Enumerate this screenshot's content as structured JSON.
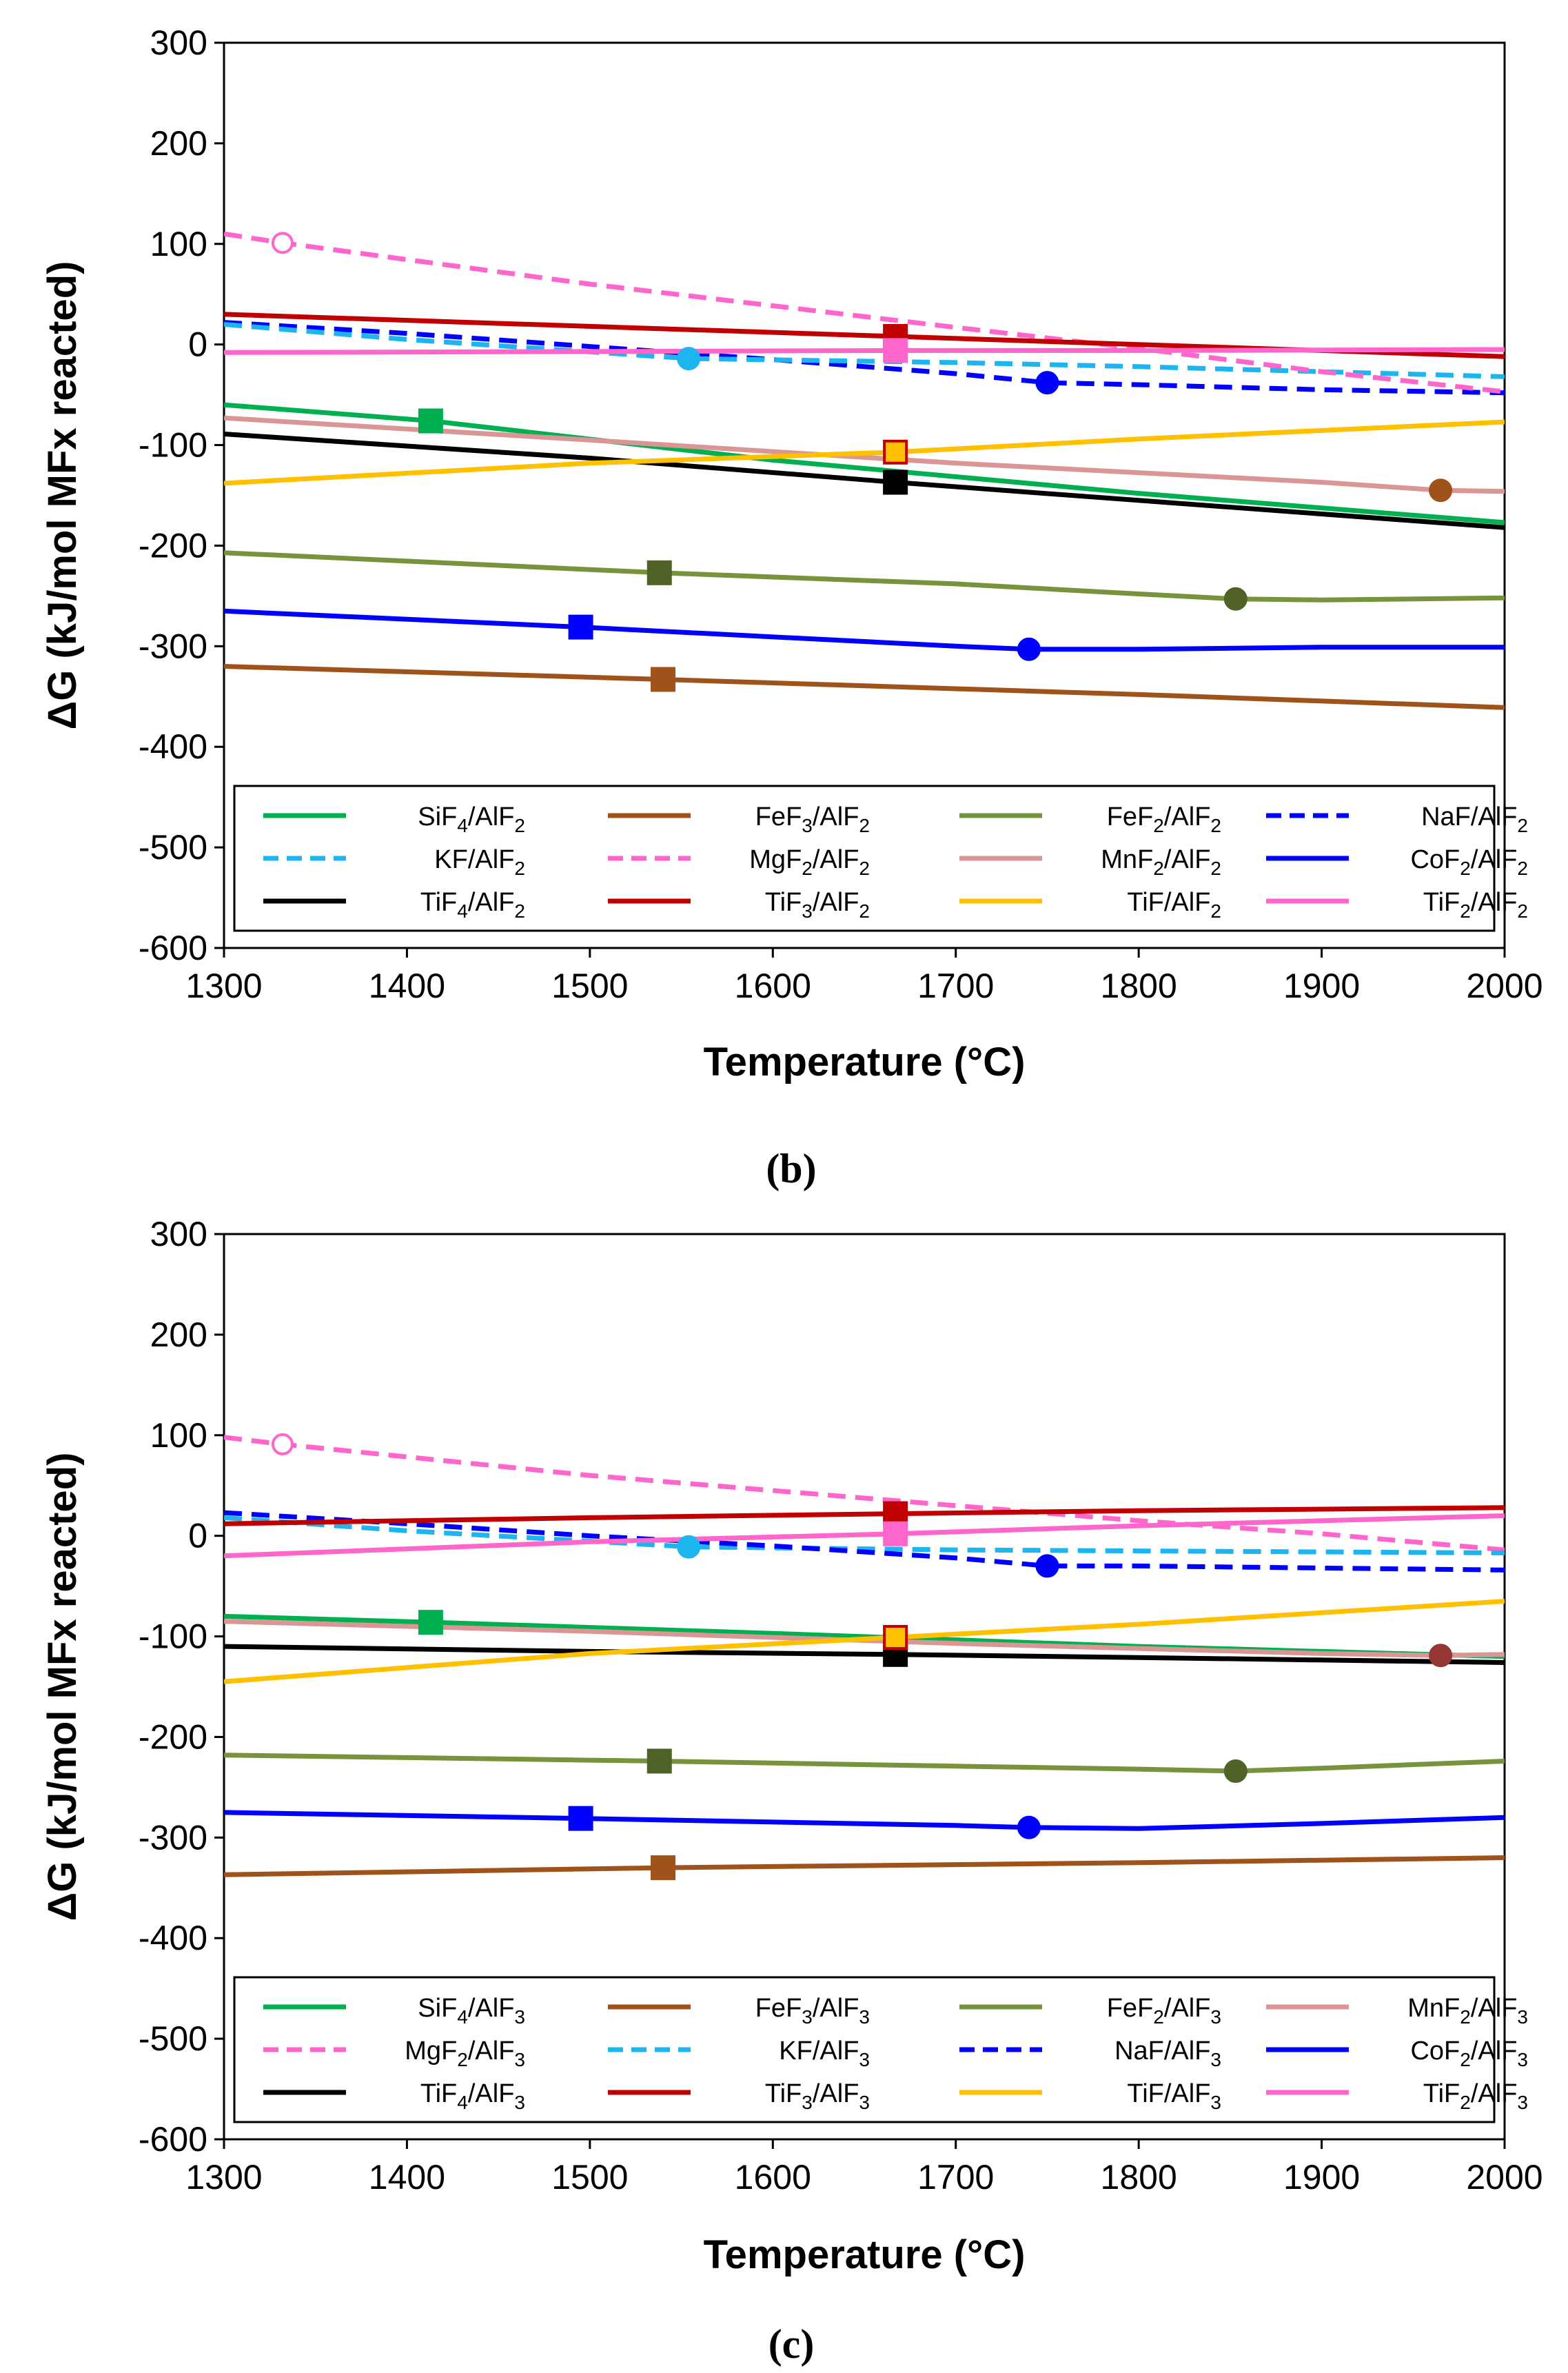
{
  "chart_data": [
    {
      "type": "line",
      "panel_label": "(b)",
      "xlabel": "Temperature (°C)",
      "ylabel": "ΔG (kJ/mol MFx reacted)",
      "xlim": [
        1300,
        2000
      ],
      "ylim": [
        -600,
        300
      ],
      "x_ticks": [
        1300,
        1400,
        1500,
        1600,
        1700,
        1800,
        1900,
        2000
      ],
      "y_ticks": [
        300,
        200,
        100,
        0,
        -100,
        -200,
        -300,
        -400,
        -500,
        -600
      ],
      "grid": false,
      "legend_position": "bottom",
      "series": [
        {
          "name": "SiF4/AlF2",
          "base": "SiF",
          "sub1": "4",
          "mid": "/AlF",
          "sub2": "2",
          "color": "#00b050",
          "dash": "solid",
          "x": [
            1300,
            1413,
            1600,
            1800,
            2000
          ],
          "y": [
            -60,
            -76,
            -115,
            -148,
            -177
          ],
          "marker": {
            "shape": "square",
            "x": 1413,
            "y": -76,
            "fill": "#00b050",
            "stroke": "#00b050"
          }
        },
        {
          "name": "FeF3/AlF2",
          "base": "FeF",
          "sub1": "3",
          "mid": "/AlF",
          "sub2": "2",
          "color": "#a0521b",
          "dash": "solid",
          "x": [
            1300,
            1540,
            1800,
            2000
          ],
          "y": [
            -320,
            -333,
            -348,
            -361
          ],
          "marker": {
            "shape": "square",
            "x": 1540,
            "y": -333,
            "fill": "#a0521b",
            "stroke": "#a0521b"
          }
        },
        {
          "name": "FeF2/AlF2",
          "base": "FeF",
          "sub1": "2",
          "mid": "/AlF",
          "sub2": "2",
          "color": "#77933c",
          "dash": "solid",
          "x": [
            1300,
            1538,
            1700,
            1800,
            1853,
            1900,
            2000
          ],
          "y": [
            -207,
            -227,
            -238,
            -248,
            -253,
            -254,
            -252
          ],
          "marker": {
            "shape": "square",
            "x": 1538,
            "y": -227,
            "fill": "#4f6228",
            "stroke": "#4f6228"
          },
          "marker2": {
            "shape": "circle",
            "x": 1853,
            "y": -253,
            "fill": "#4f6228",
            "stroke": "#4f6228"
          }
        },
        {
          "name": "NaF/AlF2",
          "base": "NaF",
          "sub1": "",
          "mid": "/AlF",
          "sub2": "2",
          "color": "#0000ff",
          "dash": "dashed",
          "x": [
            1300,
            1400,
            1500,
            1600,
            1700,
            1750,
            1800,
            1900,
            2000
          ],
          "y": [
            22,
            11,
            -2,
            -15,
            -29,
            -38,
            -40,
            -45,
            -48
          ],
          "marker": {
            "shape": "circle",
            "x": 1750,
            "y": -38,
            "fill": "#0000ff",
            "stroke": "#0000ff"
          }
        },
        {
          "name": "KF/AlF2",
          "base": "KF",
          "sub1": "",
          "mid": "/AlF",
          "sub2": "2",
          "color": "#1cb5f0",
          "dash": "dashed",
          "x": [
            1300,
            1400,
            1554,
            1700,
            1800,
            1900,
            2000
          ],
          "y": [
            20,
            5,
            -14,
            -18,
            -22,
            -27,
            -32
          ],
          "marker": {
            "shape": "circle",
            "x": 1554,
            "y": -14,
            "fill": "#1cb5f0",
            "stroke": "#1cb5f0"
          }
        },
        {
          "name": "MgF2/AlF2",
          "base": "MgF",
          "sub1": "2",
          "mid": "/AlF",
          "sub2": "2",
          "color": "#ff66cc",
          "dash": "dashed",
          "x": [
            1300,
            1332,
            1500,
            1700,
            1800,
            1900,
            2000
          ],
          "y": [
            110,
            101,
            60,
            17,
            -4,
            -27,
            -47
          ],
          "marker": {
            "shape": "open-circle",
            "x": 1332,
            "y": 101,
            "fill": "none",
            "stroke": "#ff66cc"
          }
        },
        {
          "name": "MnF2/AlF2",
          "base": "MnF",
          "sub1": "2",
          "mid": "/AlF",
          "sub2": "2",
          "color": "#d99694",
          "dash": "solid",
          "x": [
            1300,
            1500,
            1700,
            1900,
            1965,
            2000
          ],
          "y": [
            -73,
            -95,
            -118,
            -137,
            -145,
            -146
          ],
          "marker": {
            "shape": "circle",
            "x": 1965,
            "y": -145,
            "fill": "#a0521b",
            "stroke": "#a0521b"
          }
        },
        {
          "name": "CoF2/AlF2",
          "base": "CoF",
          "sub1": "2",
          "mid": "/AlF",
          "sub2": "2",
          "color": "#0000ff",
          "dash": "solid",
          "x": [
            1300,
            1495,
            1700,
            1740,
            1800,
            1900,
            2000
          ],
          "y": [
            -265,
            -281,
            -300,
            -303,
            -303,
            -301,
            -301
          ],
          "marker": {
            "shape": "square",
            "x": 1495,
            "y": -281,
            "fill": "#0000ff",
            "stroke": "#0000ff"
          },
          "marker2": {
            "shape": "circle",
            "x": 1740,
            "y": -303,
            "fill": "#0000ff",
            "stroke": "#0000ff"
          }
        },
        {
          "name": "TiF4/AlF2",
          "base": "TiF",
          "sub1": "4",
          "mid": "/AlF",
          "sub2": "2",
          "color": "#000000",
          "dash": "solid",
          "x": [
            1300,
            1500,
            1667,
            1800,
            2000
          ],
          "y": [
            -89,
            -113,
            -137,
            -155,
            -182
          ],
          "marker": {
            "shape": "square",
            "x": 1667,
            "y": -137,
            "fill": "#000000",
            "stroke": "#000000"
          }
        },
        {
          "name": "TiF3/AlF2",
          "base": "TiF",
          "sub1": "3",
          "mid": "/AlF",
          "sub2": "2",
          "color": "#c00000",
          "dash": "solid",
          "x": [
            1300,
            1500,
            1667,
            1800,
            2000
          ],
          "y": [
            30,
            18,
            8,
            0,
            -12
          ],
          "marker": {
            "shape": "square",
            "x": 1667,
            "y": 8,
            "fill": "#c00000",
            "stroke": "#c00000"
          }
        },
        {
          "name": "TiF/AlF2",
          "base": "TiF",
          "sub1": "",
          "mid": "/AlF",
          "sub2": "2",
          "color": "#ffc000",
          "dash": "solid",
          "x": [
            1300,
            1500,
            1667,
            1800,
            2000
          ],
          "y": [
            -138,
            -118,
            -107,
            -94,
            -77
          ],
          "marker": {
            "shape": "square",
            "x": 1667,
            "y": -107,
            "fill": "#ffc000",
            "stroke": "#c00000"
          }
        },
        {
          "name": "TiF2/AlF2",
          "base": "TiF",
          "sub1": "2",
          "mid": "/AlF",
          "sub2": "2",
          "color": "#ff66cc",
          "dash": "solid",
          "x": [
            1300,
            1500,
            1667,
            1800,
            2000
          ],
          "y": [
            -8,
            -7,
            -6,
            -6,
            -5
          ],
          "marker": {
            "shape": "square",
            "x": 1667,
            "y": -6,
            "fill": "#ff66cc",
            "stroke": "#ff66cc"
          }
        }
      ]
    },
    {
      "type": "line",
      "panel_label": "(c)",
      "xlabel": "Temperature (°C)",
      "ylabel": "ΔG (kJ/mol MFx reacted)",
      "xlim": [
        1300,
        2000
      ],
      "ylim": [
        -600,
        300
      ],
      "x_ticks": [
        1300,
        1400,
        1500,
        1600,
        1700,
        1800,
        1900,
        2000
      ],
      "y_ticks": [
        300,
        200,
        100,
        0,
        -100,
        -200,
        -300,
        -400,
        -500,
        -600
      ],
      "grid": false,
      "legend_position": "bottom",
      "series": [
        {
          "name": "SiF4/AlF3",
          "base": "SiF",
          "sub1": "4",
          "mid": "/AlF",
          "sub2": "3",
          "color": "#00b050",
          "dash": "solid",
          "x": [
            1300,
            1413,
            1600,
            1800,
            2000
          ],
          "y": [
            -80,
            -86,
            -97,
            -110,
            -120
          ],
          "marker": {
            "shape": "square",
            "x": 1413,
            "y": -86,
            "fill": "#00b050",
            "stroke": "#00b050"
          }
        },
        {
          "name": "FeF3/AlF3",
          "base": "FeF",
          "sub1": "3",
          "mid": "/AlF",
          "sub2": "3",
          "color": "#a0521b",
          "dash": "solid",
          "x": [
            1300,
            1540,
            1800,
            2000
          ],
          "y": [
            -337,
            -330,
            -325,
            -320
          ],
          "marker": {
            "shape": "square",
            "x": 1540,
            "y": -330,
            "fill": "#a0521b",
            "stroke": "#a0521b"
          }
        },
        {
          "name": "FeF2/AlF3",
          "base": "FeF",
          "sub1": "2",
          "mid": "/AlF",
          "sub2": "3",
          "color": "#77933c",
          "dash": "solid",
          "x": [
            1300,
            1538,
            1700,
            1800,
            1853,
            1900,
            2000
          ],
          "y": [
            -218,
            -224,
            -229,
            -232,
            -234,
            -231,
            -224
          ],
          "marker": {
            "shape": "square",
            "x": 1538,
            "y": -224,
            "fill": "#4f6228",
            "stroke": "#4f6228"
          },
          "marker2": {
            "shape": "circle",
            "x": 1853,
            "y": -234,
            "fill": "#4f6228",
            "stroke": "#4f6228"
          }
        },
        {
          "name": "MnF2/AlF3",
          "base": "MnF",
          "sub1": "2",
          "mid": "/AlF",
          "sub2": "3",
          "color": "#d99694",
          "dash": "solid",
          "x": [
            1300,
            1500,
            1700,
            1900,
            1965,
            2000
          ],
          "y": [
            -85,
            -95,
            -107,
            -117,
            -119,
            -118
          ],
          "marker": {
            "shape": "circle",
            "x": 1965,
            "y": -119,
            "fill": "#953735",
            "stroke": "#953735"
          }
        },
        {
          "name": "MgF2/AlF3",
          "base": "MgF",
          "sub1": "2",
          "mid": "/AlF",
          "sub2": "3",
          "color": "#ff66cc",
          "dash": "dashed",
          "x": [
            1300,
            1332,
            1500,
            1700,
            1800,
            1900,
            2000
          ],
          "y": [
            98,
            91,
            60,
            30,
            15,
            2,
            -14
          ],
          "marker": {
            "shape": "open-circle",
            "x": 1332,
            "y": 91,
            "fill": "none",
            "stroke": "#ff66cc"
          }
        },
        {
          "name": "KF/AlF3",
          "base": "KF",
          "sub1": "",
          "mid": "/AlF",
          "sub2": "3",
          "color": "#1cb5f0",
          "dash": "dashed",
          "x": [
            1300,
            1400,
            1554,
            1700,
            1800,
            1900,
            2000
          ],
          "y": [
            18,
            5,
            -11,
            -14,
            -15,
            -16,
            -17
          ],
          "marker": {
            "shape": "circle",
            "x": 1554,
            "y": -11,
            "fill": "#1cb5f0",
            "stroke": "#1cb5f0"
          }
        },
        {
          "name": "NaF/AlF3",
          "base": "NaF",
          "sub1": "",
          "mid": "/AlF",
          "sub2": "3",
          "color": "#0000ff",
          "dash": "dashed",
          "x": [
            1300,
            1400,
            1500,
            1600,
            1700,
            1750,
            1800,
            1900,
            2000
          ],
          "y": [
            23,
            12,
            0,
            -10,
            -22,
            -30,
            -30,
            -32,
            -34
          ],
          "marker": {
            "shape": "circle",
            "x": 1750,
            "y": -30,
            "fill": "#0000ff",
            "stroke": "#0000ff"
          }
        },
        {
          "name": "CoF2/AlF3",
          "base": "CoF",
          "sub1": "2",
          "mid": "/AlF",
          "sub2": "3",
          "color": "#0000ff",
          "dash": "solid",
          "x": [
            1300,
            1495,
            1700,
            1740,
            1800,
            1900,
            2000
          ],
          "y": [
            -275,
            -281,
            -288,
            -290,
            -291,
            -286,
            -280
          ],
          "marker": {
            "shape": "square",
            "x": 1495,
            "y": -281,
            "fill": "#0000ff",
            "stroke": "#0000ff"
          },
          "marker2": {
            "shape": "circle",
            "x": 1740,
            "y": -290,
            "fill": "#0000ff",
            "stroke": "#0000ff"
          }
        },
        {
          "name": "TiF4/AlF3",
          "base": "TiF",
          "sub1": "4",
          "mid": "/AlF",
          "sub2": "3",
          "color": "#000000",
          "dash": "solid",
          "x": [
            1300,
            1500,
            1667,
            1800,
            2000
          ],
          "y": [
            -110,
            -115,
            -118,
            -121,
            -126
          ],
          "marker": {
            "shape": "square",
            "x": 1667,
            "y": -118,
            "fill": "#000000",
            "stroke": "#000000"
          }
        },
        {
          "name": "TiF3/AlF3",
          "base": "TiF",
          "sub1": "3",
          "mid": "/AlF",
          "sub2": "3",
          "color": "#c00000",
          "dash": "solid",
          "x": [
            1300,
            1500,
            1667,
            1800,
            2000
          ],
          "y": [
            12,
            18,
            22,
            25,
            28
          ],
          "marker": {
            "shape": "square",
            "x": 1667,
            "y": 22,
            "fill": "#c00000",
            "stroke": "#c00000"
          }
        },
        {
          "name": "TiF/AlF3",
          "base": "TiF",
          "sub1": "",
          "mid": "/AlF",
          "sub2": "3",
          "color": "#ffc000",
          "dash": "solid",
          "x": [
            1300,
            1500,
            1667,
            1800,
            2000
          ],
          "y": [
            -145,
            -117,
            -101,
            -88,
            -65
          ],
          "marker": {
            "shape": "square",
            "x": 1667,
            "y": -101,
            "fill": "#ffc000",
            "stroke": "#c00000"
          }
        },
        {
          "name": "TiF2/AlF3",
          "base": "TiF",
          "sub1": "2",
          "mid": "/AlF",
          "sub2": "3",
          "color": "#ff66cc",
          "dash": "solid",
          "x": [
            1300,
            1500,
            1667,
            1800,
            2000
          ],
          "y": [
            -20,
            -6,
            2,
            10,
            20
          ],
          "marker": {
            "shape": "square",
            "x": 1667,
            "y": 2,
            "fill": "#ff66cc",
            "stroke": "#ff66cc"
          }
        }
      ]
    }
  ]
}
